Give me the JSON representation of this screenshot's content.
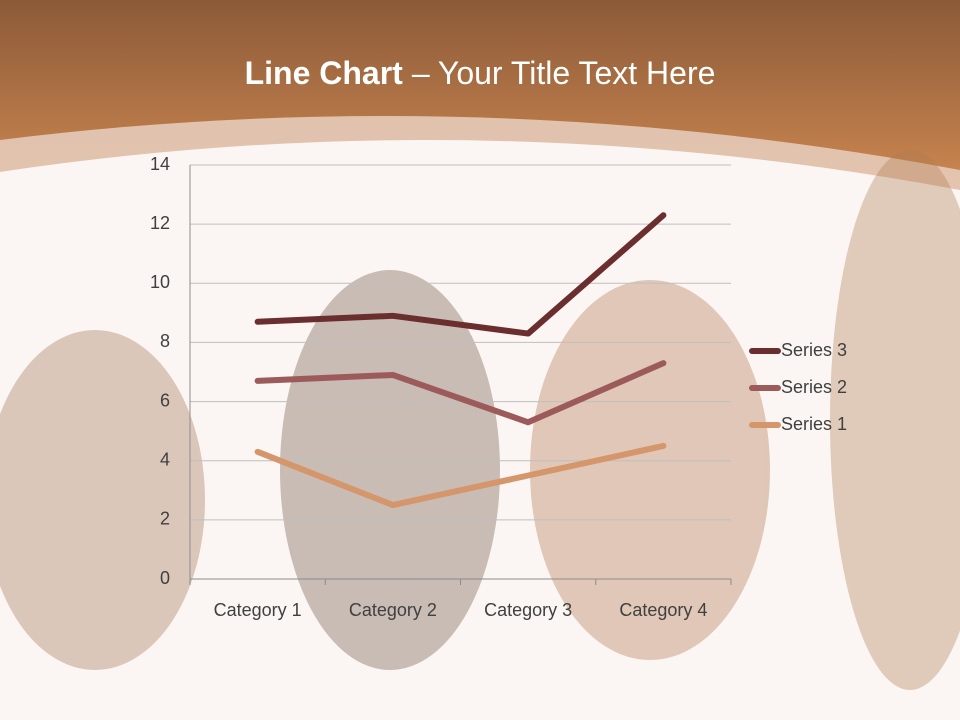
{
  "chart_data": {
    "type": "line",
    "stacked": true,
    "title_emphasis": "Line Chart",
    "title": "– Your Title Text Here",
    "categories": [
      "Category 1",
      "Category 2",
      "Category 3",
      "Category 4"
    ],
    "series": [
      {
        "name": "Series 1",
        "color": "#d4966a",
        "values": [
          4.3,
          2.5,
          3.5,
          4.5
        ]
      },
      {
        "name": "Series 2",
        "color": "#9c5a5a",
        "values": [
          2.4,
          4.4,
          1.8,
          2.8
        ]
      },
      {
        "name": "Series 3",
        "color": "#6b2e2e",
        "values": [
          2,
          2,
          3,
          5
        ]
      }
    ],
    "ylim": [
      0,
      14
    ],
    "yticks": [
      0,
      2,
      4,
      6,
      8,
      10,
      12,
      14
    ],
    "grid": true,
    "legend": "right"
  }
}
